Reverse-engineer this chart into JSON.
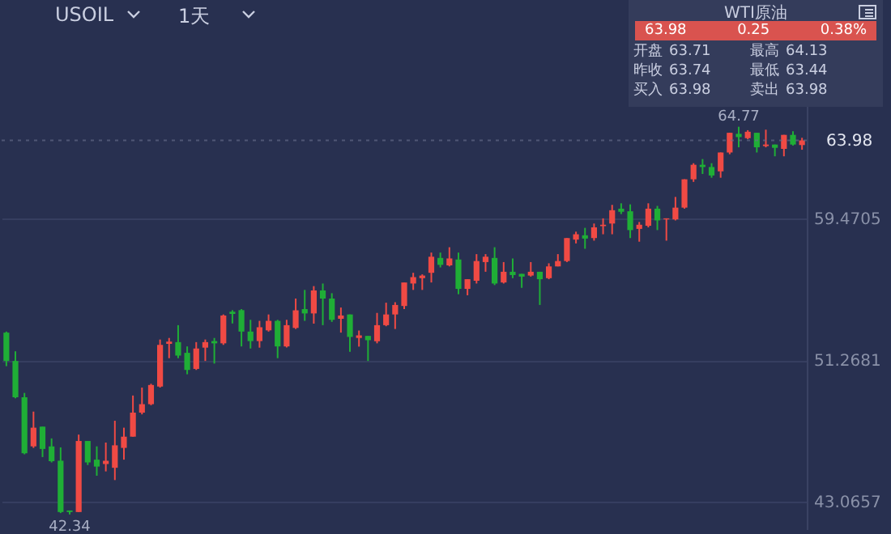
{
  "chart_data": {
    "type": "candlestick",
    "title": "USOIL",
    "subtitle": "1天",
    "categories": [
      null,
      null,
      null,
      null,
      null,
      null,
      null,
      null,
      null,
      null,
      null,
      null,
      null,
      null,
      null,
      null,
      null,
      null,
      null,
      null,
      null,
      null,
      null,
      null,
      null,
      null,
      null,
      null,
      null,
      null,
      null,
      null,
      null,
      null,
      null,
      null,
      null,
      null,
      null,
      null,
      null,
      null,
      null,
      null,
      null,
      null,
      null,
      null,
      null,
      null,
      null,
      null,
      null,
      null,
      null,
      null,
      null,
      null,
      null,
      null,
      null,
      null,
      null,
      null,
      null,
      null,
      null,
      null,
      null,
      null,
      null,
      null,
      null,
      null,
      null,
      null,
      null,
      null,
      null,
      null,
      null,
      null,
      null,
      null,
      null,
      null,
      null,
      null,
      null
    ],
    "ohlc": [
      [
        52.86,
        52.92,
        50.92,
        51.22
      ],
      [
        51.22,
        51.78,
        49.06,
        49.12
      ],
      [
        49.12,
        49.37,
        45.82,
        45.88
      ],
      [
        46.28,
        48.29,
        46.19,
        47.36
      ],
      [
        47.42,
        47.42,
        45.66,
        46.13
      ],
      [
        46.28,
        46.74,
        45.35,
        45.42
      ],
      [
        45.45,
        46.22,
        42.42,
        42.48
      ],
      [
        42.57,
        42.57,
        42.34,
        42.48
      ],
      [
        42.48,
        46.96,
        42.48,
        46.59
      ],
      [
        46.59,
        46.59,
        45.2,
        45.35
      ],
      [
        45.51,
        46.28,
        44.58,
        45.11
      ],
      [
        45.26,
        46.5,
        44.83,
        45.45
      ],
      [
        45.04,
        47.76,
        44.33,
        46.34
      ],
      [
        46.19,
        47.36,
        45.51,
        46.84
      ],
      [
        46.84,
        49.22,
        46.84,
        48.23
      ],
      [
        48.23,
        49.68,
        48.13,
        48.72
      ],
      [
        48.72,
        49.9,
        48.66,
        49.83
      ],
      [
        49.74,
        52.46,
        49.68,
        52.15
      ],
      [
        52.21,
        52.55,
        51.38,
        52.34
      ],
      [
        52.31,
        53.29,
        51.38,
        51.53
      ],
      [
        51.69,
        52.06,
        50.45,
        50.7
      ],
      [
        50.76,
        52.31,
        50.7,
        51.94
      ],
      [
        51.99,
        52.46,
        51.22,
        52.31
      ],
      [
        52.37,
        52.55,
        51.07,
        52.24
      ],
      [
        52.24,
        53.91,
        52.15,
        53.85
      ],
      [
        54.07,
        54.16,
        53.39,
        53.94
      ],
      [
        54.16,
        54.22,
        52.06,
        52.92
      ],
      [
        52.92,
        53.6,
        51.94,
        52.37
      ],
      [
        52.37,
        53.54,
        51.99,
        53.17
      ],
      [
        52.99,
        53.91,
        52.92,
        53.54
      ],
      [
        53.54,
        53.6,
        51.38,
        52.06
      ],
      [
        52.06,
        53.6,
        52.0,
        53.29
      ],
      [
        53.13,
        54.83,
        53.07,
        54.15
      ],
      [
        54.22,
        55.33,
        53.54,
        53.97
      ],
      [
        53.97,
        55.55,
        53.38,
        55.3
      ],
      [
        55.3,
        55.7,
        53.29,
        54.83
      ],
      [
        54.83,
        55.14,
        53.48,
        53.6
      ],
      [
        53.66,
        54.31,
        52.86,
        53.85
      ],
      [
        53.91,
        53.91,
        51.75,
        52.61
      ],
      [
        52.55,
        52.98,
        52.05,
        52.7
      ],
      [
        52.67,
        52.67,
        51.22,
        52.42
      ],
      [
        52.36,
        54.0,
        52.24,
        53.29
      ],
      [
        53.29,
        54.59,
        53.23,
        53.91
      ],
      [
        53.91,
        54.62,
        53.07,
        54.46
      ],
      [
        54.4,
        55.76,
        54.22,
        55.76
      ],
      [
        55.7,
        56.32,
        55.33,
        56.07
      ],
      [
        56.01,
        56.23,
        55.33,
        56.16
      ],
      [
        56.32,
        57.49,
        55.76,
        57.25
      ],
      [
        57.18,
        57.49,
        56.63,
        56.78
      ],
      [
        56.75,
        57.8,
        56.69,
        57.15
      ],
      [
        57.09,
        57.49,
        55.08,
        55.39
      ],
      [
        55.39,
        55.95,
        55.02,
        55.95
      ],
      [
        55.86,
        57.4,
        55.7,
        57.0
      ],
      [
        56.94,
        57.4,
        56.38,
        57.25
      ],
      [
        57.18,
        57.8,
        55.61,
        55.7
      ],
      [
        55.76,
        56.94,
        55.7,
        56.38
      ],
      [
        56.38,
        57.15,
        56.01,
        56.19
      ],
      [
        56.26,
        56.26,
        55.45,
        56.1
      ],
      [
        56.16,
        56.94,
        56.1,
        56.38
      ],
      [
        56.38,
        56.38,
        54.46,
        55.95
      ],
      [
        56.01,
        56.87,
        55.95,
        56.69
      ],
      [
        56.69,
        57.4,
        56.69,
        57.0
      ],
      [
        57.0,
        58.33,
        56.94,
        58.33
      ],
      [
        58.24,
        58.7,
        58.02,
        58.55
      ],
      [
        58.49,
        58.92,
        57.71,
        58.3
      ],
      [
        58.33,
        59.17,
        58.18,
        58.95
      ],
      [
        59.02,
        59.47,
        58.55,
        59.1
      ],
      [
        59.17,
        60.25,
        58.55,
        59.94
      ],
      [
        60.03,
        60.34,
        59.72,
        59.85
      ],
      [
        59.88,
        60.28,
        58.33,
        58.79
      ],
      [
        58.86,
        59.26,
        58.12,
        59.1
      ],
      [
        59.04,
        60.34,
        58.95,
        60.03
      ],
      [
        60.03,
        60.19,
        58.79,
        59.35
      ],
      [
        59.41,
        59.47,
        58.18,
        59.47
      ],
      [
        59.41,
        60.71,
        59.35,
        60.09
      ],
      [
        60.09,
        61.73,
        60.03,
        61.73
      ],
      [
        61.73,
        62.66,
        61.58,
        62.57
      ],
      [
        62.57,
        62.9,
        62.04,
        62.44
      ],
      [
        62.44,
        62.66,
        61.82,
        61.95
      ],
      [
        62.19,
        63.28,
        61.82,
        63.28
      ],
      [
        63.28,
        64.42,
        63.18,
        64.42
      ],
      [
        64.36,
        64.77,
        63.58,
        64.17
      ],
      [
        64.11,
        64.57,
        64.05,
        64.48
      ],
      [
        64.42,
        64.42,
        63.28,
        63.58
      ],
      [
        63.65,
        64.6,
        63.58,
        63.74
      ],
      [
        63.74,
        63.74,
        63.06,
        63.55
      ],
      [
        63.49,
        64.3,
        63.06,
        64.3
      ],
      [
        64.3,
        64.51,
        63.68,
        63.74
      ],
      [
        63.71,
        64.13,
        63.44,
        63.98
      ]
    ],
    "colors": [
      "#1fae36",
      "#1fae36",
      "#1fae36",
      "#f04a44",
      "#1fae36",
      "#1fae36",
      "#1fae36",
      "#1fae36",
      "#f04a44",
      "#1fae36",
      "#1fae36",
      "#f04a44",
      "#f04a44",
      "#f04a44",
      "#f04a44",
      "#f04a44",
      "#f04a44",
      "#f04a44",
      "#f04a44",
      "#1fae36",
      "#1fae36",
      "#f04a44",
      "#f04a44",
      "#1fae36",
      "#f04a44",
      "#1fae36",
      "#1fae36",
      "#1fae36",
      "#f04a44",
      "#f04a44",
      "#1fae36",
      "#f04a44",
      "#f04a44",
      "#1fae36",
      "#f04a44",
      "#1fae36",
      "#1fae36",
      "#f04a44",
      "#1fae36",
      "#f04a44",
      "#1fae36",
      "#f04a44",
      "#f04a44",
      "#f04a44",
      "#f04a44",
      "#f04a44",
      "#f04a44",
      "#f04a44",
      "#1fae36",
      "#f04a44",
      "#1fae36",
      "#f04a44",
      "#f04a44",
      "#f04a44",
      "#1fae36",
      "#f04a44",
      "#1fae36",
      "#1fae36",
      "#f04a44",
      "#1fae36",
      "#f04a44",
      "#f04a44",
      "#f04a44",
      "#f04a44",
      "#1fae36",
      "#f04a44",
      "#f04a44",
      "#f04a44",
      "#1fae36",
      "#1fae36",
      "#f04a44",
      "#f04a44",
      "#1fae36",
      "#f04a44",
      "#f04a44",
      "#f04a44",
      "#f04a44",
      "#1fae36",
      "#1fae36",
      "#f04a44",
      "#f04a44",
      "#1fae36",
      "#f04a44",
      "#1fae36",
      "#f04a44",
      "#1fae36",
      "#f04a44",
      "#1fae36",
      "#f04a44"
    ],
    "ylim": [
      41.49,
      70.23
    ],
    "yticks": [
      43.0657,
      51.2681,
      59.4705
    ],
    "grid": "y",
    "tick_labels": "y",
    "ref_lines": [
      {
        "axis": "y",
        "value": 63.98,
        "label": "63.98"
      }
    ],
    "annotations": [
      {
        "text": "64.77",
        "y": 64.77
      },
      {
        "text": "42.34",
        "y": 42.34
      },
      "WTI原油",
      "63.98",
      "0.25",
      "0.38%",
      "开盘",
      "63.71",
      "最高",
      "64.13",
      "昨收",
      "63.74",
      "最低",
      "63.44",
      "买入",
      "63.98",
      "卖出",
      "63.98"
    ]
  }
}
